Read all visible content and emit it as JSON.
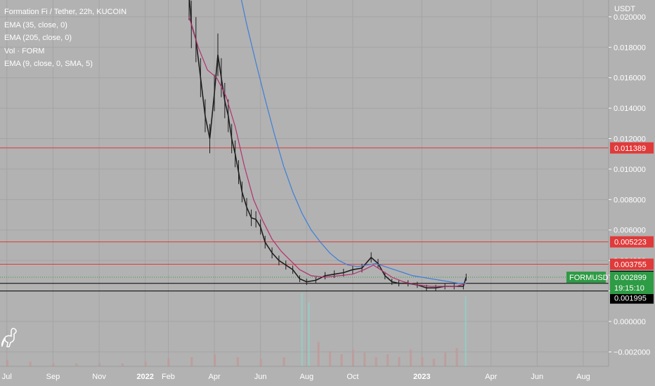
{
  "legend": {
    "title": "Formation Fi / Tether, 22h, KUCOIN",
    "indicators": [
      "EMA (35, close, 0)",
      "EMA (205, close, 0)",
      "Vol · FORM",
      "EMA (9, close, 0, SMA, 5)"
    ]
  },
  "colors": {
    "background": "#b2b2b2",
    "grid": "#a4a4a4",
    "candle": "#1e1e1e",
    "ema35": "#b3306e",
    "ema205": "#3b7fd9",
    "resistance": "#e03a3a",
    "support": "#000000",
    "price_tag": "#2e9b45",
    "text": "#ffffff"
  },
  "chart_data": {
    "type": "candlestick",
    "title": "Formation Fi / Tether, 22h, KUCOIN",
    "y_axis_unit": "USDT",
    "y_axis_ticks": [
      0.02,
      0.018,
      0.016,
      0.014,
      0.012,
      0.01,
      0.008,
      0.006,
      0.004,
      0.002,
      0.0,
      -0.002
    ],
    "y_axis_tick_labels": [
      "0.020000",
      "0.018000",
      "0.016000",
      "0.014000",
      "0.012000",
      "0.010000",
      "0.008000",
      "0.006000",
      "0.004000",
      "0.002000",
      "0.000000",
      "−0.002000"
    ],
    "y_range": [
      -0.00295,
      0.0211
    ],
    "x_axis_labels": [
      "Jul",
      "Sep",
      "Nov",
      "2022",
      "Feb",
      "Apr",
      "Jun",
      "Aug",
      "Oct",
      "2023",
      "Apr",
      "Jun",
      "Aug"
    ],
    "x_axis_label_positions": [
      0.0,
      2.0,
      4.0,
      6.0,
      7.0,
      9.0,
      11.0,
      13.0,
      15.0,
      18.0,
      21.0,
      23.0,
      25.0
    ],
    "x_range": [
      -0.3,
      26.1
    ],
    "price_series": [
      [
        7.9,
        0.0215
      ],
      [
        8.0,
        0.0195
      ],
      [
        8.2,
        0.0185
      ],
      [
        8.4,
        0.016
      ],
      [
        8.6,
        0.0135
      ],
      [
        8.8,
        0.012
      ],
      [
        9.0,
        0.015
      ],
      [
        9.15,
        0.0175
      ],
      [
        9.3,
        0.016
      ],
      [
        9.45,
        0.0145
      ],
      [
        9.6,
        0.0135
      ],
      [
        9.75,
        0.012
      ],
      [
        9.9,
        0.011
      ],
      [
        10.05,
        0.0098
      ],
      [
        10.2,
        0.0085
      ],
      [
        10.4,
        0.0075
      ],
      [
        10.6,
        0.0068
      ],
      [
        10.8,
        0.0067
      ],
      [
        11.0,
        0.0062
      ],
      [
        11.2,
        0.0052
      ],
      [
        11.5,
        0.0045
      ],
      [
        11.8,
        0.004
      ],
      [
        12.1,
        0.0037
      ],
      [
        12.4,
        0.0034
      ],
      [
        12.7,
        0.0028
      ],
      [
        13.0,
        0.0026
      ],
      [
        13.4,
        0.0027
      ],
      [
        13.8,
        0.003
      ],
      [
        14.2,
        0.0031
      ],
      [
        14.6,
        0.0032
      ],
      [
        15.0,
        0.0034
      ],
      [
        15.4,
        0.0035
      ],
      [
        15.8,
        0.0042
      ],
      [
        16.1,
        0.0038
      ],
      [
        16.4,
        0.003
      ],
      [
        16.7,
        0.0026
      ],
      [
        17.0,
        0.0025
      ],
      [
        17.4,
        0.0025
      ],
      [
        17.8,
        0.0024
      ],
      [
        18.2,
        0.0022
      ],
      [
        18.6,
        0.0022
      ],
      [
        19.0,
        0.0023
      ],
      [
        19.4,
        0.0023
      ],
      [
        19.8,
        0.0023
      ],
      [
        19.92,
        0.0029
      ]
    ],
    "series": [
      {
        "name": "EMA (35, close, 0)",
        "color": "#b3306e",
        "points": [
          [
            7.9,
            0.02
          ],
          [
            8.3,
            0.018
          ],
          [
            8.7,
            0.0165
          ],
          [
            9.1,
            0.016
          ],
          [
            9.5,
            0.0148
          ],
          [
            9.9,
            0.0128
          ],
          [
            10.3,
            0.0102
          ],
          [
            10.7,
            0.008
          ],
          [
            11.1,
            0.0066
          ],
          [
            11.5,
            0.0054
          ],
          [
            11.9,
            0.0046
          ],
          [
            12.3,
            0.004
          ],
          [
            12.7,
            0.0034
          ],
          [
            13.2,
            0.003
          ],
          [
            13.8,
            0.0029
          ],
          [
            14.4,
            0.003
          ],
          [
            15.0,
            0.0031
          ],
          [
            15.5,
            0.0034
          ],
          [
            15.9,
            0.0037
          ],
          [
            16.3,
            0.0033
          ],
          [
            16.7,
            0.0029
          ],
          [
            17.2,
            0.0026
          ],
          [
            17.8,
            0.0024
          ],
          [
            18.4,
            0.0023
          ],
          [
            19.0,
            0.0023
          ],
          [
            19.5,
            0.0023
          ],
          [
            19.92,
            0.0025
          ]
        ]
      },
      {
        "name": "EMA (205, close, 0)",
        "color": "#3b7fd9",
        "points": [
          [
            10.1,
            0.0216
          ],
          [
            10.4,
            0.0195
          ],
          [
            10.8,
            0.017
          ],
          [
            11.2,
            0.0146
          ],
          [
            11.6,
            0.0123
          ],
          [
            12.0,
            0.0102
          ],
          [
            12.4,
            0.0085
          ],
          [
            12.8,
            0.0071
          ],
          [
            13.2,
            0.006
          ],
          [
            13.6,
            0.0052
          ],
          [
            14.0,
            0.0045
          ],
          [
            14.4,
            0.004
          ],
          [
            14.8,
            0.0037
          ],
          [
            15.2,
            0.0036
          ],
          [
            15.6,
            0.0037
          ],
          [
            16.0,
            0.0038
          ],
          [
            16.4,
            0.0036
          ],
          [
            16.8,
            0.0034
          ],
          [
            17.2,
            0.0032
          ],
          [
            17.6,
            0.003
          ],
          [
            18.0,
            0.0029
          ],
          [
            18.4,
            0.0028
          ],
          [
            18.8,
            0.0027
          ],
          [
            19.2,
            0.0026
          ],
          [
            19.6,
            0.0025
          ],
          [
            19.92,
            0.0025
          ]
        ]
      }
    ],
    "horizontal_lines": [
      {
        "label": "0.011389",
        "value": 0.011389,
        "color": "#e03a3a"
      },
      {
        "label": "0.005223",
        "value": 0.005223,
        "color": "#e03a3a"
      },
      {
        "label": "0.003755",
        "value": 0.003755,
        "color": "#e03a3a"
      },
      {
        "label": "0.002498",
        "value": 0.002498,
        "color": "#000000"
      },
      {
        "label": "0.001995",
        "value": 0.001995,
        "color": "#000000"
      }
    ],
    "current_price": {
      "symbol": "FORMUSDT",
      "value": "0.002899",
      "countdown": "19:15:10",
      "numeric": 0.002899
    },
    "volume": [
      [
        0.0,
        0.0004
      ],
      [
        1.0,
        0.0003
      ],
      [
        2.0,
        0.0002
      ],
      [
        3.0,
        0.0002
      ],
      [
        4.0,
        0.0002
      ],
      [
        5.0,
        0.0002
      ],
      [
        6.0,
        0.0003
      ],
      [
        7.0,
        0.0005
      ],
      [
        8.0,
        0.0006
      ],
      [
        9.0,
        0.0008
      ],
      [
        10.0,
        0.0006
      ],
      [
        11.0,
        0.0005
      ],
      [
        12.0,
        0.0006
      ],
      [
        12.8,
        0.0048
      ],
      [
        13.1,
        0.0042
      ],
      [
        13.5,
        0.0016
      ],
      [
        14.0,
        0.001
      ],
      [
        14.5,
        0.0008
      ],
      [
        15.0,
        0.0011
      ],
      [
        15.5,
        0.0009
      ],
      [
        16.0,
        0.0006
      ],
      [
        16.5,
        0.0008
      ],
      [
        17.0,
        0.0006
      ],
      [
        17.5,
        0.0011
      ],
      [
        18.0,
        0.0006
      ],
      [
        18.5,
        0.0005
      ],
      [
        19.0,
        0.0009
      ],
      [
        19.5,
        0.0012
      ],
      [
        19.9,
        0.0046
      ]
    ],
    "grid": true,
    "legend_position": "top-left"
  }
}
